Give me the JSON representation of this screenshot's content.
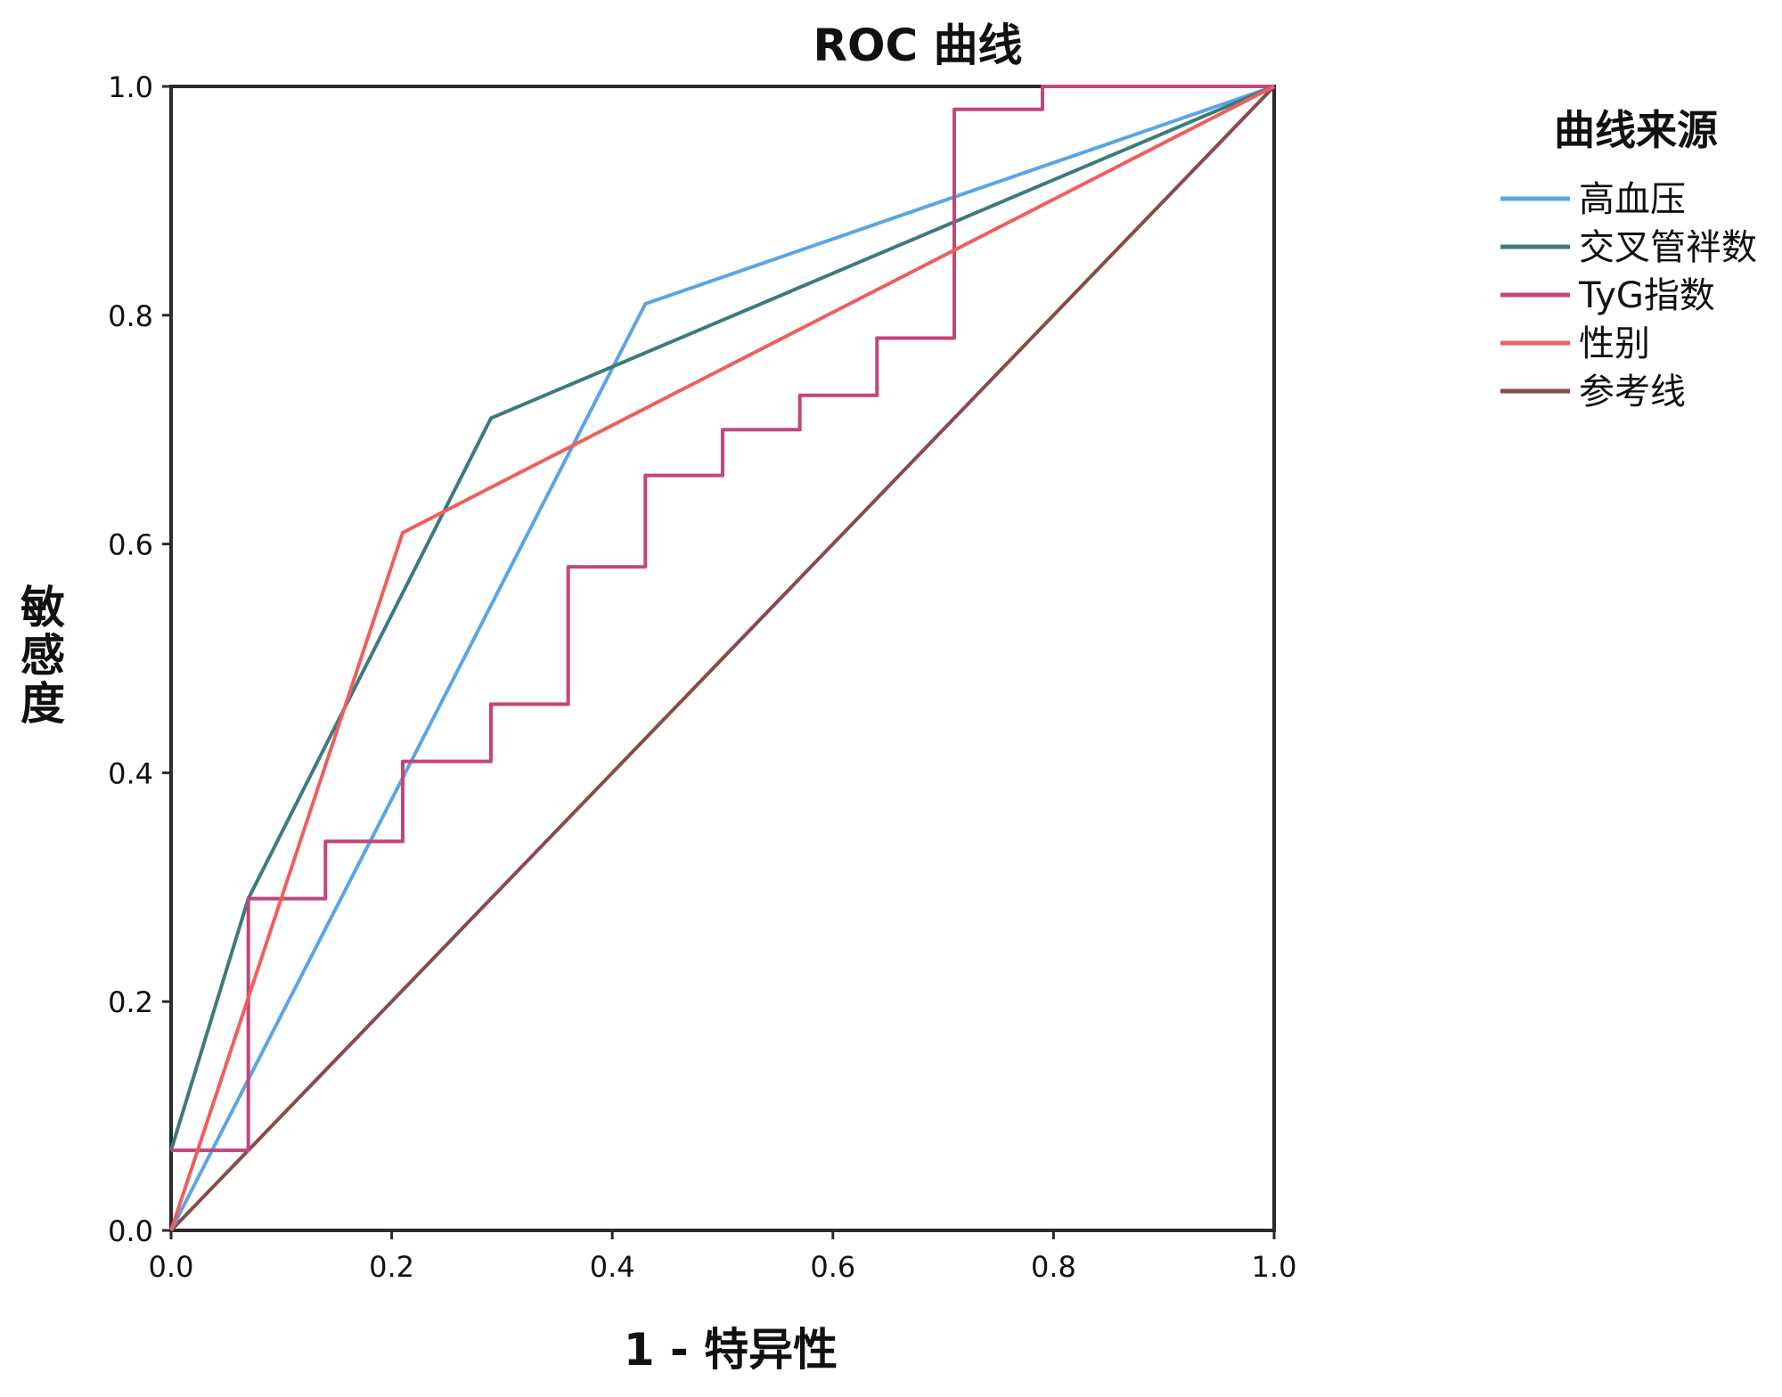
{
  "chart_data": {
    "type": "line",
    "title": "ROC 曲线",
    "xlabel": "1 - 特异性",
    "ylabel": "敏感度",
    "xlim": [
      0,
      1
    ],
    "ylim": [
      0,
      1
    ],
    "xticks": [
      "0.0",
      "0.2",
      "0.4",
      "0.6",
      "0.8",
      "1.0"
    ],
    "yticks": [
      "0.0",
      "0.2",
      "0.4",
      "0.6",
      "0.8",
      "1.0"
    ],
    "grid": false,
    "legend": {
      "title": "曲线来源",
      "placement": "right"
    },
    "series": [
      {
        "name": "高血压",
        "color": "#5aa5e6",
        "points": [
          [
            0,
            0
          ],
          [
            0.43,
            0.81
          ],
          [
            1,
            1
          ]
        ]
      },
      {
        "name": "交叉管袢数",
        "color": "#3d7a7c",
        "points": [
          [
            0,
            0.07
          ],
          [
            0.07,
            0.29
          ],
          [
            0.29,
            0.71
          ],
          [
            1,
            1
          ]
        ]
      },
      {
        "name": "TyG指数",
        "color": "#c2467a",
        "points": [
          [
            0,
            0.07
          ],
          [
            0.07,
            0.07
          ],
          [
            0.07,
            0.29
          ],
          [
            0.14,
            0.29
          ],
          [
            0.14,
            0.34
          ],
          [
            0.21,
            0.34
          ],
          [
            0.21,
            0.41
          ],
          [
            0.29,
            0.41
          ],
          [
            0.29,
            0.46
          ],
          [
            0.36,
            0.46
          ],
          [
            0.36,
            0.58
          ],
          [
            0.43,
            0.58
          ],
          [
            0.43,
            0.66
          ],
          [
            0.5,
            0.66
          ],
          [
            0.5,
            0.7
          ],
          [
            0.57,
            0.7
          ],
          [
            0.57,
            0.73
          ],
          [
            0.64,
            0.73
          ],
          [
            0.64,
            0.78
          ],
          [
            0.71,
            0.78
          ],
          [
            0.71,
            0.98
          ],
          [
            0.79,
            0.98
          ],
          [
            0.79,
            1
          ],
          [
            1,
            1
          ]
        ]
      },
      {
        "name": "性别",
        "color": "#ee5f5b",
        "points": [
          [
            0,
            0
          ],
          [
            0.21,
            0.61
          ],
          [
            1,
            1
          ]
        ]
      },
      {
        "name": "参考线",
        "color": "#8a4a4a",
        "points": [
          [
            0,
            0
          ],
          [
            1,
            1
          ]
        ]
      }
    ]
  }
}
